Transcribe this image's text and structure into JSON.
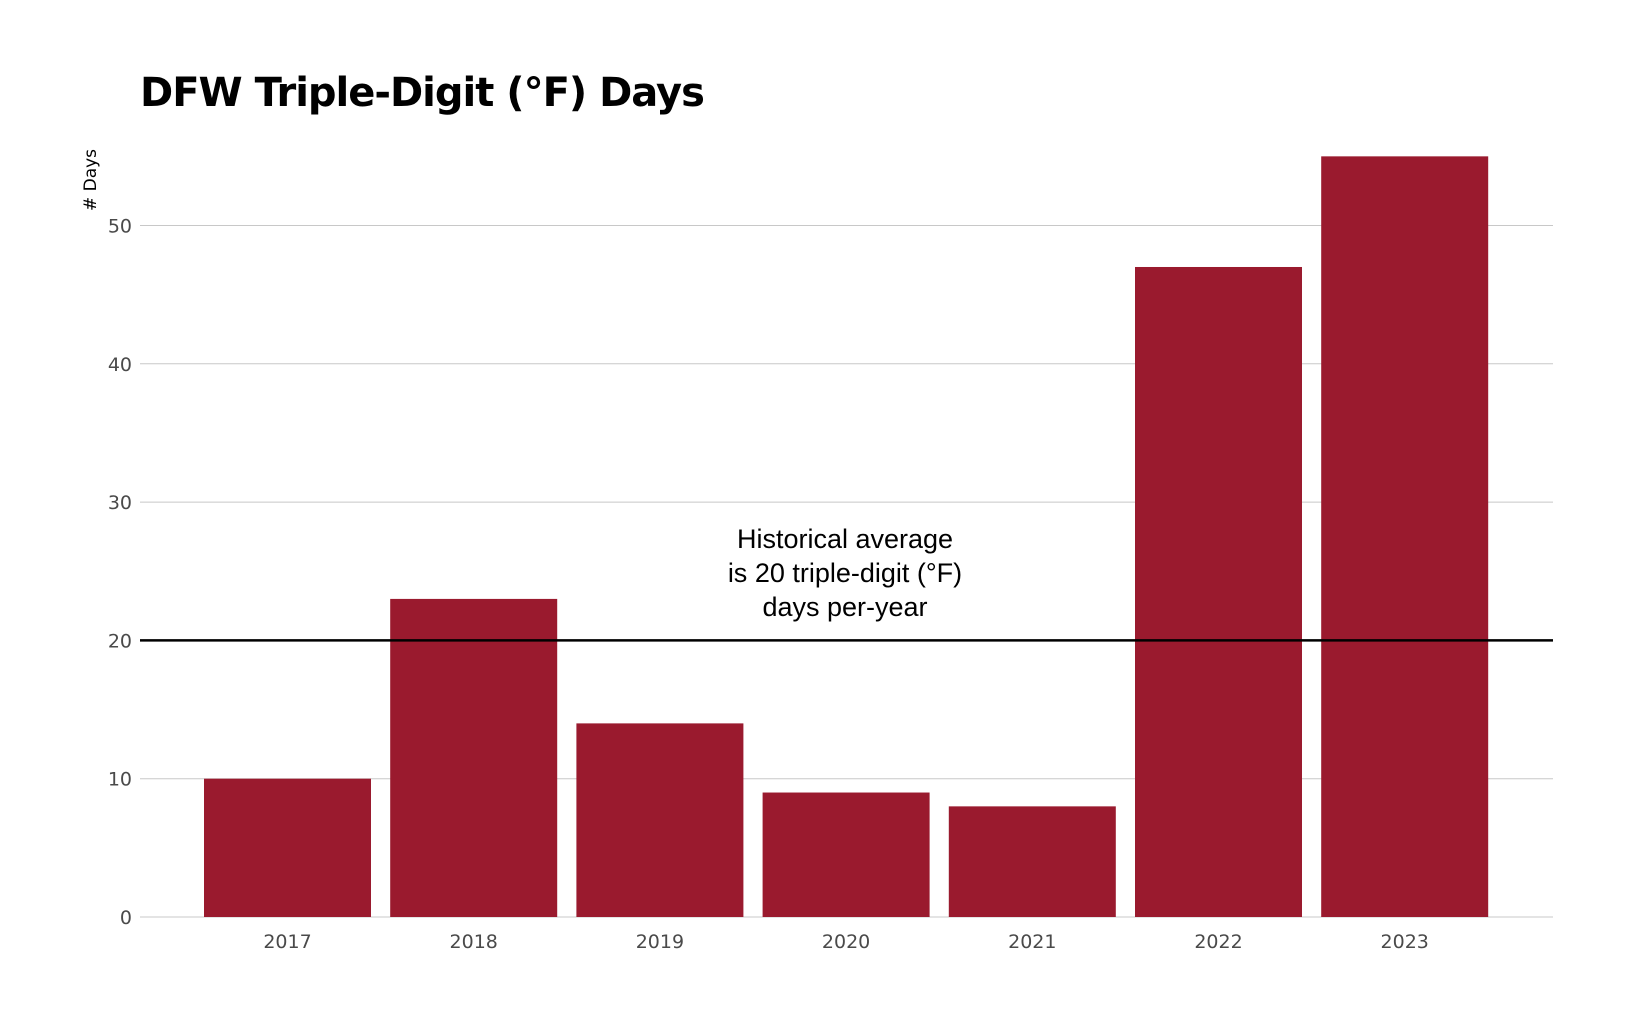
{
  "chart_data": {
    "type": "bar",
    "title": "DFW Triple-Digit (°F) Days",
    "ylabel": "# Days",
    "xlabel": "",
    "categories": [
      "2017",
      "2018",
      "2019",
      "2020",
      "2021",
      "2022",
      "2023"
    ],
    "values": [
      10,
      23,
      14,
      9,
      8,
      47,
      55
    ],
    "ylim": [
      0,
      55
    ],
    "yticks": [
      "0",
      "10",
      "20",
      "30",
      "40",
      "50"
    ],
    "grid": "horizontal",
    "bar_color": "#9a1a2e",
    "reference_line": {
      "value": 20,
      "color": "#000000",
      "annotation": [
        "Historical average",
        "is 20 triple-digit (°F)",
        "days per-year"
      ]
    }
  }
}
